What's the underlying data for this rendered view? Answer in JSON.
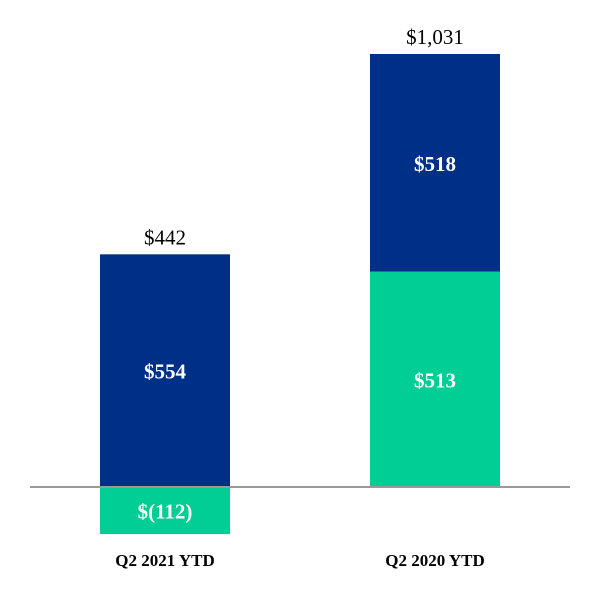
{
  "chart_data": {
    "type": "bar",
    "stacked": true,
    "categories": [
      "Q2 2021 YTD",
      "Q2 2020 YTD"
    ],
    "series": [
      {
        "color": "#00CE94",
        "values": [
          -112,
          513
        ],
        "labels": [
          "$(112)",
          "$513"
        ]
      },
      {
        "color": "#002F87",
        "values": [
          554,
          518
        ],
        "labels": [
          "$554",
          "$518"
        ]
      }
    ],
    "totals": [
      442,
      1031
    ],
    "total_labels": [
      "$442",
      "$1,031"
    ],
    "ylim": [
      -160,
      1100
    ],
    "grid": false,
    "baseline_color": "#999999"
  }
}
